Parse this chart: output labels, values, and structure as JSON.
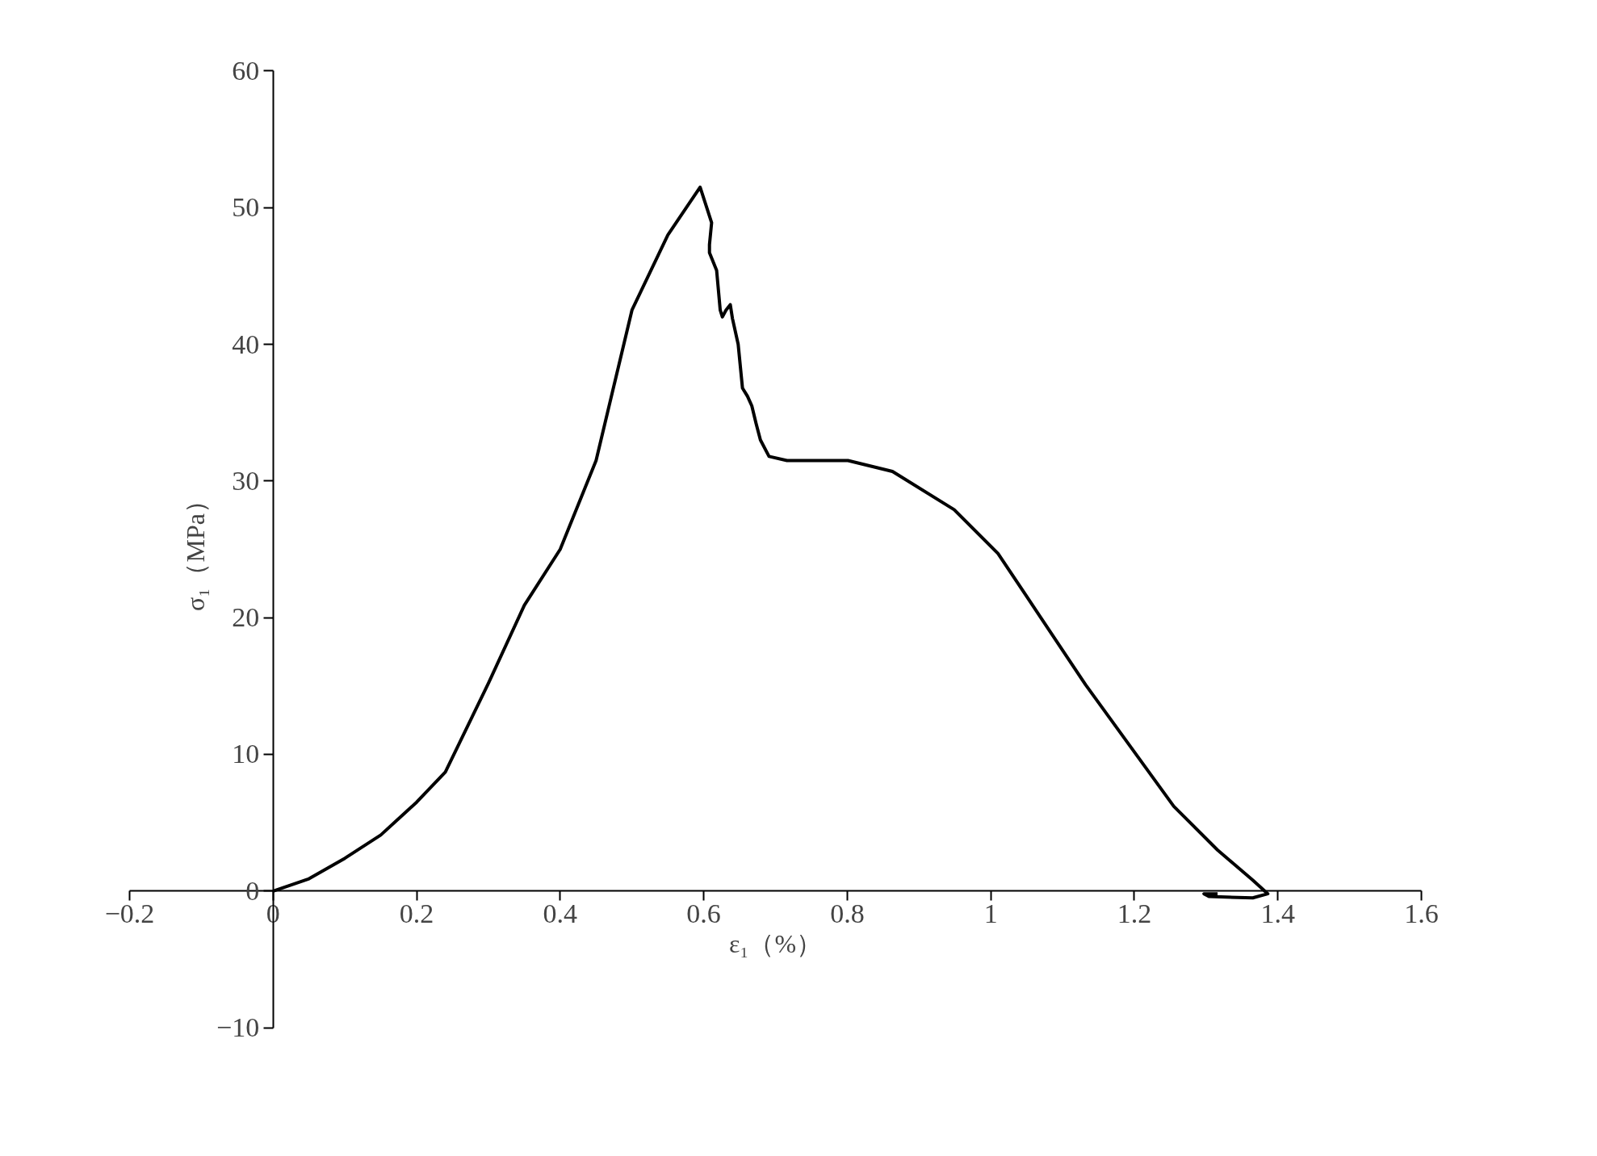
{
  "chart_data": {
    "type": "line",
    "xlabel": "ε₁（%）",
    "ylabel": "σ₁（MPa）",
    "xlim": [
      -0.2,
      1.6
    ],
    "ylim": [
      -10,
      60
    ],
    "xticks": [
      -0.2,
      0,
      0.2,
      0.4,
      0.6,
      0.8,
      1,
      1.2,
      1.4,
      1.6
    ],
    "yticks": [
      -10,
      0,
      10,
      20,
      30,
      40,
      50,
      60
    ],
    "grid": false,
    "marker": "none",
    "line_style": "solid",
    "series": [
      {
        "color": "#000000",
        "x": [
          0,
          0.05,
          0.1,
          0.15,
          0.2,
          0.24,
          0.3,
          0.35,
          0.4,
          0.45,
          0.5,
          0.55,
          0.595,
          0.611,
          0.608,
          0.608,
          0.618,
          0.623,
          0.626,
          0.631,
          0.637,
          0.64,
          0.648,
          0.654,
          0.661,
          0.667,
          0.673,
          0.679,
          0.691,
          0.716,
          0.801,
          0.863,
          0.949,
          1.01,
          1.132,
          1.255,
          1.316,
          1.365,
          1.386,
          1.365,
          1.304,
          1.297,
          1.316
        ],
        "values": [
          0,
          0.9,
          2.4,
          4.1,
          6.5,
          8.7,
          15.2,
          20.9,
          25,
          31.5,
          42.5,
          48,
          51.5,
          48.9,
          47.3,
          46.7,
          45.4,
          42.5,
          42,
          42.5,
          42.9,
          41.9,
          40,
          36.8,
          36.2,
          35.5,
          34.2,
          33,
          31.8,
          31.5,
          31.5,
          30.7,
          27.9,
          24.7,
          15.1,
          6.2,
          3,
          0.8,
          -0.2,
          -0.5,
          -0.4,
          -0.2,
          -0.2
        ]
      }
    ]
  }
}
